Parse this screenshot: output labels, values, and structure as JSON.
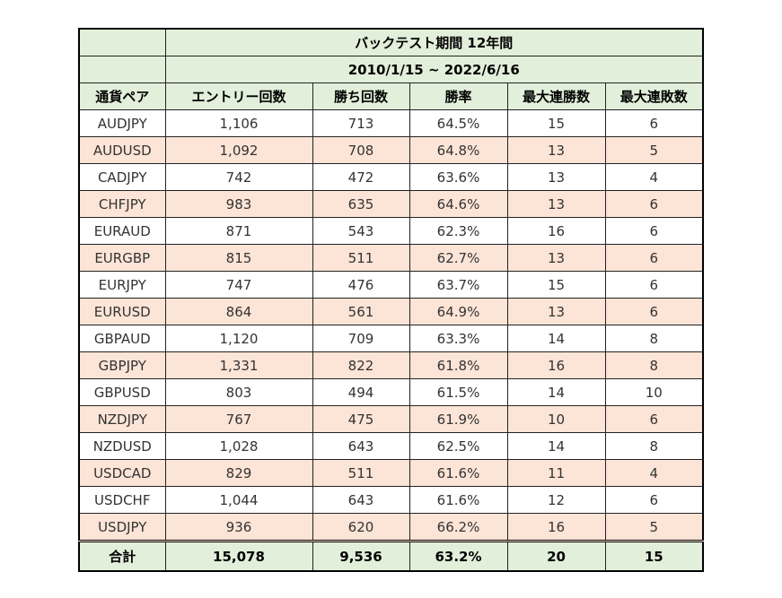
{
  "title": "バックテスト期間 12年間",
  "period": "2010/1/15 ~ 2022/6/16",
  "headers": [
    "通貨ペア",
    "エントリー回数",
    "勝ち回数",
    "勝率",
    "最大連勝数",
    "最大連敗数"
  ],
  "rows": [
    [
      "AUDJPY",
      "1,106",
      "713",
      "64.5%",
      "15",
      "6"
    ],
    [
      "AUDUSD",
      "1,092",
      "708",
      "64.8%",
      "13",
      "5"
    ],
    [
      "CADJPY",
      "742",
      "472",
      "63.6%",
      "13",
      "4"
    ],
    [
      "CHFJPY",
      "983",
      "635",
      "64.6%",
      "13",
      "6"
    ],
    [
      "EURAUD",
      "871",
      "543",
      "62.3%",
      "16",
      "6"
    ],
    [
      "EURGBP",
      "815",
      "511",
      "62.7%",
      "13",
      "6"
    ],
    [
      "EURJPY",
      "747",
      "476",
      "63.7%",
      "15",
      "6"
    ],
    [
      "EURUSD",
      "864",
      "561",
      "64.9%",
      "13",
      "6"
    ],
    [
      "GBPAUD",
      "1,120",
      "709",
      "63.3%",
      "14",
      "8"
    ],
    [
      "GBPJPY",
      "1,331",
      "822",
      "61.8%",
      "16",
      "8"
    ],
    [
      "GBPUSD",
      "803",
      "494",
      "61.5%",
      "14",
      "10"
    ],
    [
      "NZDJPY",
      "767",
      "475",
      "61.9%",
      "10",
      "6"
    ],
    [
      "NZDUSD",
      "1,028",
      "643",
      "62.5%",
      "14",
      "8"
    ],
    [
      "USDCAD",
      "829",
      "511",
      "61.6%",
      "11",
      "4"
    ],
    [
      "USDCHF",
      "1,044",
      "643",
      "61.6%",
      "12",
      "6"
    ],
    [
      "USDJPY",
      "936",
      "620",
      "66.2%",
      "16",
      "5"
    ]
  ],
  "total": [
    "合計",
    "15,078",
    "9,536",
    "63.2%",
    "20",
    "15"
  ],
  "colors": {
    "header": "#e2efda",
    "stripe": "#fce4d6"
  }
}
